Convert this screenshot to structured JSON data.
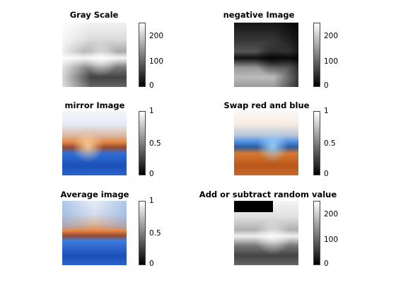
{
  "panels": [
    {
      "title": "Gray Scale",
      "ticks": [
        "0",
        "100",
        "200"
      ]
    },
    {
      "title": "negative Image",
      "ticks": [
        "0",
        "100",
        "200"
      ]
    },
    {
      "title": "mirror Image",
      "ticks": [
        "0",
        "0.5",
        "1"
      ]
    },
    {
      "title": "Swap red and blue",
      "ticks": [
        "0",
        "0.5",
        "1"
      ]
    },
    {
      "title": "Average image",
      "ticks": [
        "0",
        "0.5",
        "1"
      ]
    },
    {
      "title": "Add or subtract random value",
      "ticks": [
        "0",
        "100",
        "200"
      ]
    }
  ],
  "colors": {
    "background": "#ffffff",
    "colorbar_low": "#000000",
    "colorbar_high": "#ffffff",
    "blue": "#2f6fd6",
    "orange": "#e7894a"
  }
}
